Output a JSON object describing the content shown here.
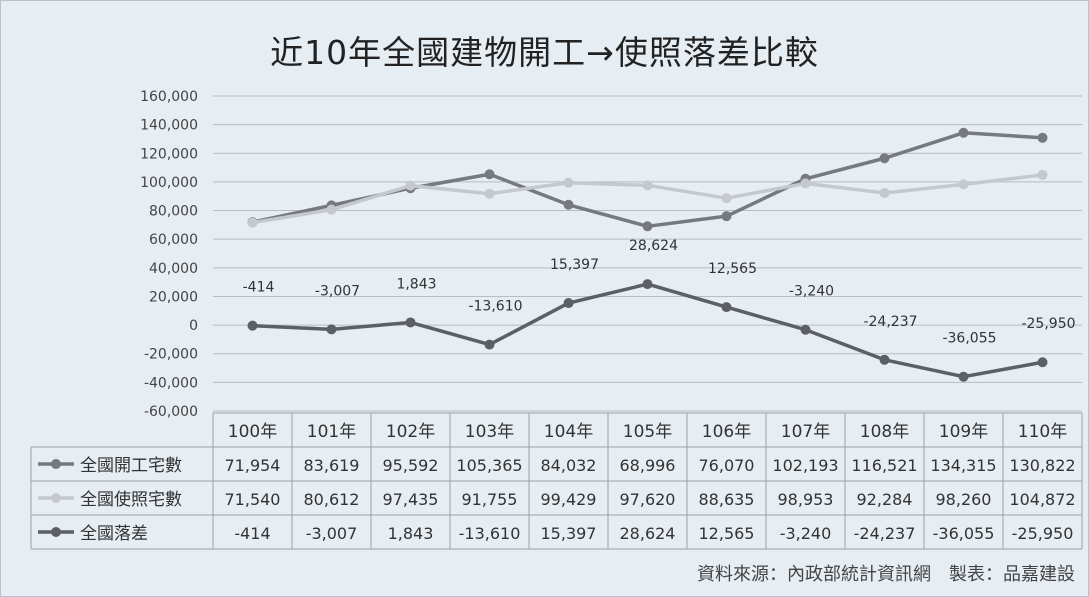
{
  "chart_data": {
    "type": "line",
    "title": "近10年全國建物開工→使照落差比較",
    "xlabel": "",
    "ylabel": "",
    "ylim": [
      -60000,
      160000
    ],
    "ytick_step": 20000,
    "grid": true,
    "categories": [
      "100年",
      "101年",
      "102年",
      "103年",
      "104年",
      "105年",
      "106年",
      "107年",
      "108年",
      "109年",
      "110年"
    ],
    "series": [
      {
        "name": "全國開工宅數",
        "color": "#767a80",
        "values": [
          71954,
          83619,
          95592,
          105365,
          84032,
          68996,
          76070,
          102193,
          116521,
          134315,
          130822
        ],
        "labels": [
          "71,954",
          "83,619",
          "95,592",
          "105,365",
          "84,032",
          "68,996",
          "76,070",
          "102,193",
          "116,521",
          "134,315",
          "130,822"
        ]
      },
      {
        "name": "全國使照宅數",
        "color": "#c5c9ce",
        "values": [
          71540,
          80612,
          97435,
          91755,
          99429,
          97620,
          88635,
          98953,
          92284,
          98260,
          104872
        ],
        "labels": [
          "71,540",
          "80,612",
          "97,435",
          "91,755",
          "99,429",
          "97,620",
          "88,635",
          "98,953",
          "92,284",
          "98,260",
          "104,872"
        ]
      },
      {
        "name": "全國落差",
        "color": "#5c6066",
        "values": [
          -414,
          -3007,
          1843,
          -13610,
          15397,
          28624,
          12565,
          -3240,
          -24237,
          -36055,
          -25950
        ],
        "labels": [
          "-414",
          "-3,007",
          "1,843",
          "-13,610",
          "15,397",
          "28,624",
          "12,565",
          "-3,240",
          "-24,237",
          "-36,055",
          "-25,950"
        ]
      }
    ],
    "data_labels_series": 2,
    "data_table": true
  },
  "source_note": "資料來源：內政部統計資訊網　製表：品嘉建設"
}
